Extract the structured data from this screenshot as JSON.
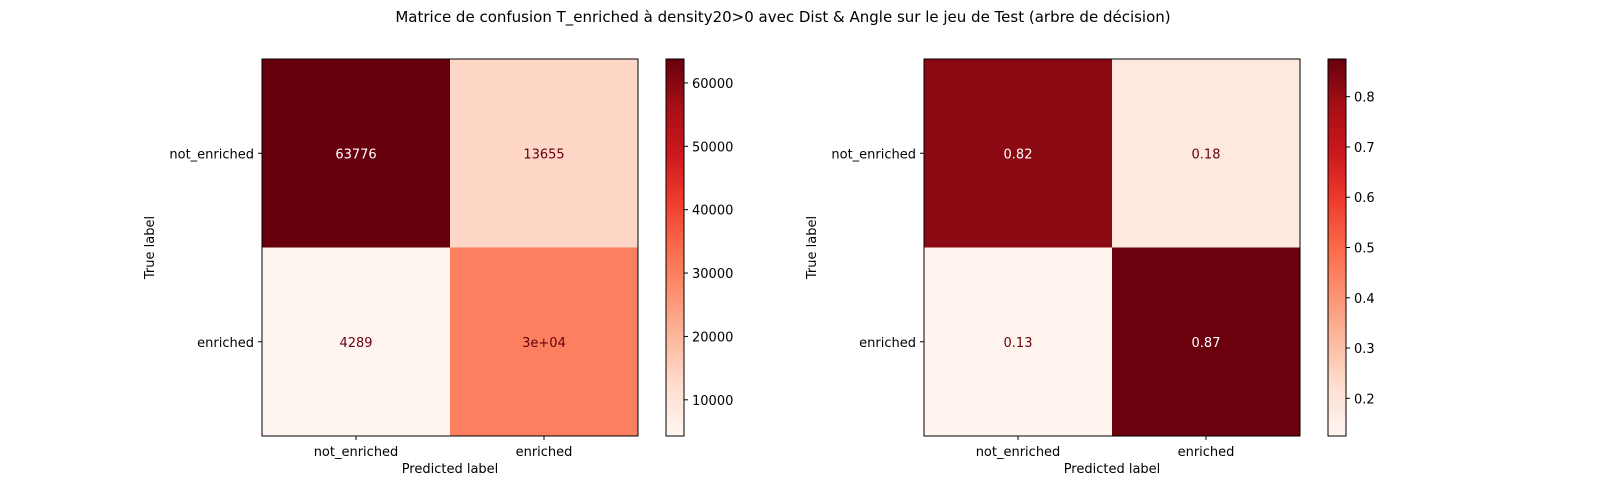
{
  "figure": {
    "title": "Matrice de confusion T_enriched à density20>0 avec Dist & Angle sur le jeu de Test (arbre de décision)"
  },
  "chart_data": [
    {
      "type": "heatmap",
      "title": "",
      "xlabel": "Predicted label",
      "ylabel": "True label",
      "x_categories": [
        "not_enriched",
        "enriched"
      ],
      "y_categories": [
        "not_enriched",
        "enriched"
      ],
      "values": [
        [
          63776,
          13655
        ],
        [
          4289,
          30000
        ]
      ],
      "cell_labels": [
        [
          "63776",
          "13655"
        ],
        [
          "4289",
          "3e+04"
        ]
      ],
      "colormap": "Reds",
      "vmin": 4289,
      "vmax": 63776,
      "colorbar_ticks": [
        10000,
        20000,
        30000,
        40000,
        50000,
        60000
      ],
      "colorbar_tick_labels": [
        "10000",
        "20000",
        "30000",
        "40000",
        "50000",
        "60000"
      ],
      "grid": false
    },
    {
      "type": "heatmap",
      "title": "",
      "xlabel": "Predicted label",
      "ylabel": "True label",
      "x_categories": [
        "not_enriched",
        "enriched"
      ],
      "y_categories": [
        "not_enriched",
        "enriched"
      ],
      "values": [
        [
          0.82,
          0.18
        ],
        [
          0.13,
          0.87
        ]
      ],
      "cell_labels": [
        [
          "0.82",
          "0.18"
        ],
        [
          "0.13",
          "0.87"
        ]
      ],
      "colormap": "Reds",
      "vmin": 0.125,
      "vmax": 0.875,
      "colorbar_ticks": [
        0.2,
        0.3,
        0.4,
        0.5,
        0.6,
        0.7,
        0.8
      ],
      "colorbar_tick_labels": [
        "0.2",
        "0.3",
        "0.4",
        "0.5",
        "0.6",
        "0.7",
        "0.8"
      ],
      "grid": false
    }
  ]
}
